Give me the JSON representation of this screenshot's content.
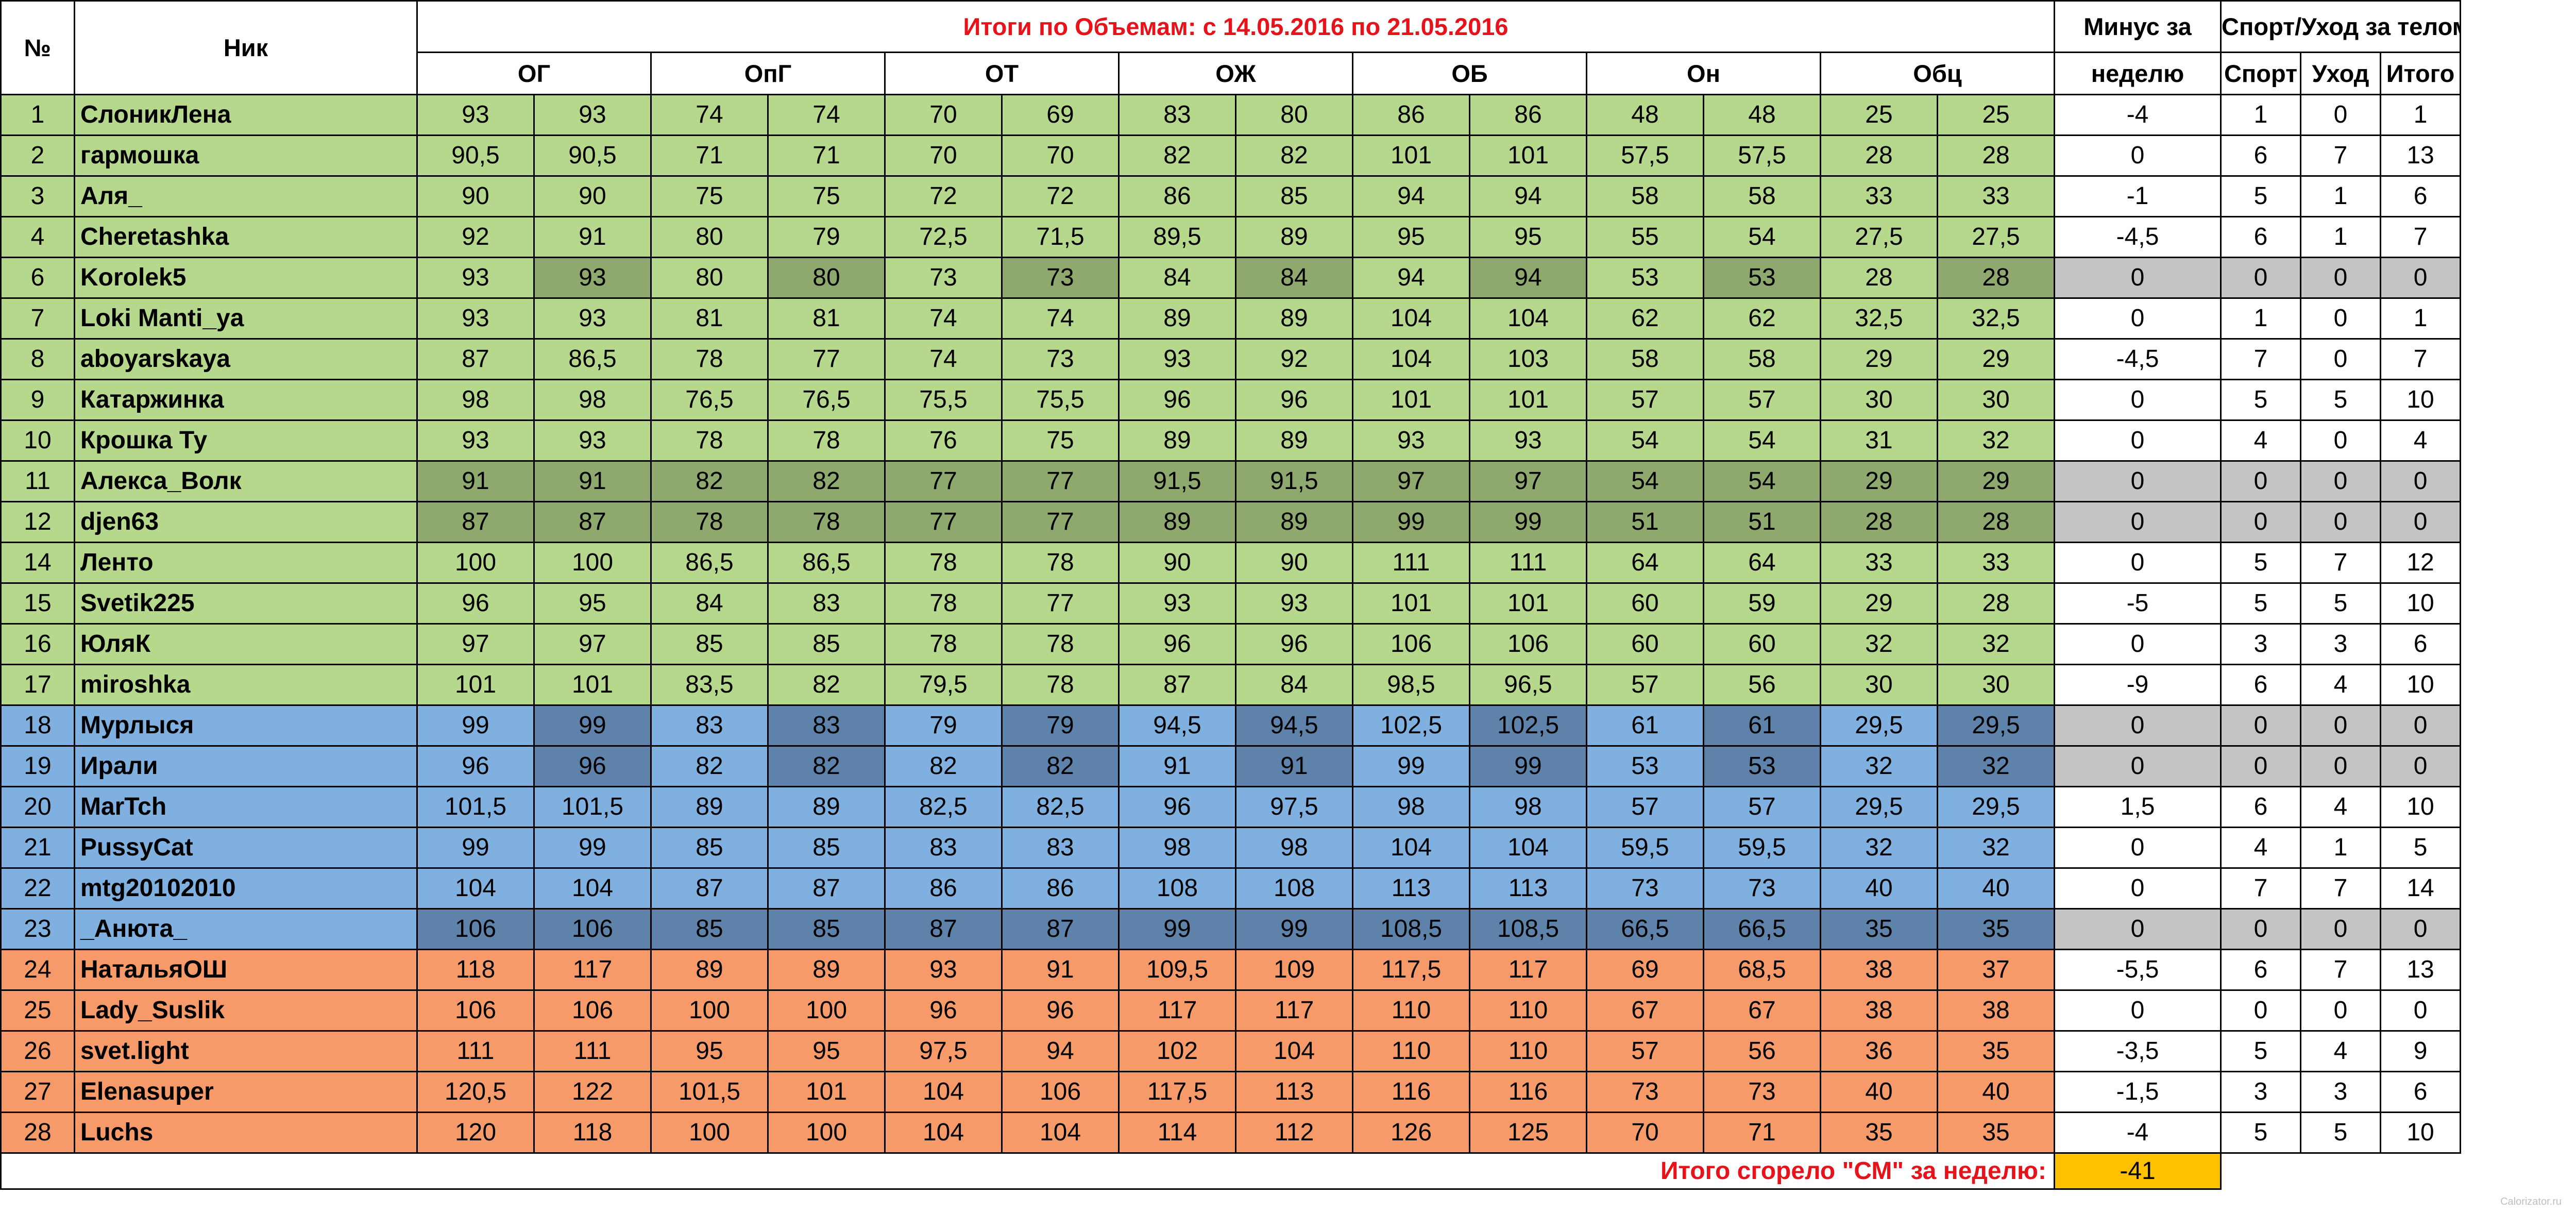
{
  "header": {
    "num_label": "№",
    "nick_label": "Ник",
    "title": "Итоги по Объемам: с  14.05.2016 по 21.05.2016",
    "minus_label_line1": "Минус за",
    "minus_label_line2": "неделю",
    "sport_group_label": "Спорт/Уход за телом",
    "measure_labels": [
      "ОГ",
      "ОпГ",
      "ОТ",
      "ОЖ",
      "ОБ",
      "Он",
      "Обц"
    ],
    "sport_labels": [
      "Спорт",
      "Уход",
      "Итого"
    ]
  },
  "rows": [
    {
      "n": "1",
      "nick": "СлоникЛена",
      "v": [
        "93",
        "93",
        "74",
        "74",
        "70",
        "69",
        "83",
        "80",
        "86",
        "86",
        "48",
        "48",
        "25",
        "25"
      ],
      "minus": "-4",
      "sport": [
        "1",
        "0",
        "1"
      ],
      "style": "g"
    },
    {
      "n": "2",
      "nick": "гармошка",
      "v": [
        "90,5",
        "90,5",
        "71",
        "71",
        "70",
        "70",
        "82",
        "82",
        "101",
        "101",
        "57,5",
        "57,5",
        "28",
        "28"
      ],
      "minus": "0",
      "sport": [
        "6",
        "7",
        "13"
      ],
      "style": "g"
    },
    {
      "n": "3",
      "nick": "Аля_",
      "v": [
        "90",
        "90",
        "75",
        "75",
        "72",
        "72",
        "86",
        "85",
        "94",
        "94",
        "58",
        "58",
        "33",
        "33"
      ],
      "minus": "-1",
      "sport": [
        "5",
        "1",
        "6"
      ],
      "style": "g"
    },
    {
      "n": "4",
      "nick": "Cheretashka",
      "v": [
        "92",
        "91",
        "80",
        "79",
        "72,5",
        "71,5",
        "89,5",
        "89",
        "95",
        "95",
        "55",
        "54",
        "27,5",
        "27,5"
      ],
      "minus": "-4,5",
      "sport": [
        "6",
        "1",
        "7"
      ],
      "style": "g"
    },
    {
      "n": "6",
      "nick": "Korolek5",
      "v": [
        "93",
        "93",
        "80",
        "80",
        "73",
        "73",
        "84",
        "84",
        "94",
        "94",
        "53",
        "53",
        "28",
        "28"
      ],
      "minus": "0",
      "sport": [
        "0",
        "0",
        "0"
      ],
      "style": "gd",
      "gray": true
    },
    {
      "n": "7",
      "nick": "Loki Manti_ya",
      "v": [
        "93",
        "93",
        "81",
        "81",
        "74",
        "74",
        "89",
        "89",
        "104",
        "104",
        "62",
        "62",
        "32,5",
        "32,5"
      ],
      "minus": "0",
      "sport": [
        "1",
        "0",
        "1"
      ],
      "style": "g"
    },
    {
      "n": "8",
      "nick": "aboyarskaya",
      "v": [
        "87",
        "86,5",
        "78",
        "77",
        "74",
        "73",
        "93",
        "92",
        "104",
        "103",
        "58",
        "58",
        "29",
        "29"
      ],
      "minus": "-4,5",
      "sport": [
        "7",
        "0",
        "7"
      ],
      "style": "g"
    },
    {
      "n": "9",
      "nick": "Катаржинка",
      "v": [
        "98",
        "98",
        "76,5",
        "76,5",
        "75,5",
        "75,5",
        "96",
        "96",
        "101",
        "101",
        "57",
        "57",
        "30",
        "30"
      ],
      "minus": "0",
      "sport": [
        "5",
        "5",
        "10"
      ],
      "style": "g"
    },
    {
      "n": "10",
      "nick": "Крошка Ту",
      "v": [
        "93",
        "93",
        "78",
        "78",
        "76",
        "75",
        "89",
        "89",
        "93",
        "93",
        "54",
        "54",
        "31",
        "32"
      ],
      "minus": "0",
      "sport": [
        "4",
        "0",
        "4"
      ],
      "style": "g"
    },
    {
      "n": "11",
      "nick": "Алекса_Волк",
      "v": [
        "91",
        "91",
        "82",
        "82",
        "77",
        "77",
        "91,5",
        "91,5",
        "97",
        "97",
        "54",
        "54",
        "29",
        "29"
      ],
      "minus": "0",
      "sport": [
        "0",
        "0",
        "0"
      ],
      "style": "gd",
      "gray": true,
      "allshade": true
    },
    {
      "n": "12",
      "nick": "djen63",
      "v": [
        "87",
        "87",
        "78",
        "78",
        "77",
        "77",
        "89",
        "89",
        "99",
        "99",
        "51",
        "51",
        "28",
        "28"
      ],
      "minus": "0",
      "sport": [
        "0",
        "0",
        "0"
      ],
      "style": "gd",
      "gray": true,
      "allshade": true
    },
    {
      "n": "14",
      "nick": "Ленто",
      "v": [
        "100",
        "100",
        "86,5",
        "86,5",
        "78",
        "78",
        "90",
        "90",
        "111",
        "111",
        "64",
        "64",
        "33",
        "33"
      ],
      "minus": "0",
      "sport": [
        "5",
        "7",
        "12"
      ],
      "style": "g"
    },
    {
      "n": "15",
      "nick": "Svetik225",
      "v": [
        "96",
        "95",
        "84",
        "83",
        "78",
        "77",
        "93",
        "93",
        "101",
        "101",
        "60",
        "59",
        "29",
        "28"
      ],
      "minus": "-5",
      "sport": [
        "5",
        "5",
        "10"
      ],
      "style": "g"
    },
    {
      "n": "16",
      "nick": "ЮляК",
      "v": [
        "97",
        "97",
        "85",
        "85",
        "78",
        "78",
        "96",
        "96",
        "106",
        "106",
        "60",
        "60",
        "32",
        "32"
      ],
      "minus": "0",
      "sport": [
        "3",
        "3",
        "6"
      ],
      "style": "g"
    },
    {
      "n": "17",
      "nick": "miroshka",
      "v": [
        "101",
        "101",
        "83,5",
        "82",
        "79,5",
        "78",
        "87",
        "84",
        "98,5",
        "96,5",
        "57",
        "56",
        "30",
        "30"
      ],
      "minus": "-9",
      "sport": [
        "6",
        "4",
        "10"
      ],
      "style": "g"
    },
    {
      "n": "18",
      "nick": "Мурлыся",
      "v": [
        "99",
        "99",
        "83",
        "83",
        "79",
        "79",
        "94,5",
        "94,5",
        "102,5",
        "102,5",
        "61",
        "61",
        "29,5",
        "29,5"
      ],
      "minus": "0",
      "sport": [
        "0",
        "0",
        "0"
      ],
      "style": "bd",
      "gray": true
    },
    {
      "n": "19",
      "nick": "Ирали",
      "v": [
        "96",
        "96",
        "82",
        "82",
        "82",
        "82",
        "91",
        "91",
        "99",
        "99",
        "53",
        "53",
        "32",
        "32"
      ],
      "minus": "0",
      "sport": [
        "0",
        "0",
        "0"
      ],
      "style": "bd",
      "gray": true
    },
    {
      "n": "20",
      "nick": "MarTch",
      "v": [
        "101,5",
        "101,5",
        "89",
        "89",
        "82,5",
        "82,5",
        "96",
        "97,5",
        "98",
        "98",
        "57",
        "57",
        "29,5",
        "29,5"
      ],
      "minus": "1,5",
      "sport": [
        "6",
        "4",
        "10"
      ],
      "style": "b"
    },
    {
      "n": "21",
      "nick": "PussyCat",
      "v": [
        "99",
        "99",
        "85",
        "85",
        "83",
        "83",
        "98",
        "98",
        "104",
        "104",
        "59,5",
        "59,5",
        "32",
        "32"
      ],
      "minus": "0",
      "sport": [
        "4",
        "1",
        "5"
      ],
      "style": "b"
    },
    {
      "n": "22",
      "nick": "mtg20102010",
      "v": [
        "104",
        "104",
        "87",
        "87",
        "86",
        "86",
        "108",
        "108",
        "113",
        "113",
        "73",
        "73",
        "40",
        "40"
      ],
      "minus": "0",
      "sport": [
        "7",
        "7",
        "14"
      ],
      "style": "b"
    },
    {
      "n": "23",
      "nick": "_Анюта_",
      "v": [
        "106",
        "106",
        "85",
        "85",
        "87",
        "87",
        "99",
        "99",
        "108,5",
        "108,5",
        "66,5",
        "66,5",
        "35",
        "35"
      ],
      "minus": "0",
      "sport": [
        "0",
        "0",
        "0"
      ],
      "style": "bd",
      "gray": true,
      "allshade": true
    },
    {
      "n": "24",
      "nick": "НатальяОШ",
      "v": [
        "118",
        "117",
        "89",
        "89",
        "93",
        "91",
        "109,5",
        "109",
        "117,5",
        "117",
        "69",
        "68,5",
        "38",
        "37"
      ],
      "minus": "-5,5",
      "sport": [
        "6",
        "7",
        "13"
      ],
      "style": "o"
    },
    {
      "n": "25",
      "nick": "Lady_Suslik",
      "v": [
        "106",
        "106",
        "100",
        "100",
        "96",
        "96",
        "117",
        "117",
        "110",
        "110",
        "67",
        "67",
        "38",
        "38"
      ],
      "minus": "0",
      "sport": [
        "0",
        "0",
        "0"
      ],
      "style": "o"
    },
    {
      "n": "26",
      "nick": "svet.light",
      "v": [
        "111",
        "111",
        "95",
        "95",
        "97,5",
        "94",
        "102",
        "104",
        "110",
        "110",
        "57",
        "56",
        "36",
        "35"
      ],
      "minus": "-3,5",
      "sport": [
        "5",
        "4",
        "9"
      ],
      "style": "o"
    },
    {
      "n": "27",
      "nick": "Elenasuper",
      "v": [
        "120,5",
        "122",
        "101,5",
        "101",
        "104",
        "106",
        "117,5",
        "113",
        "116",
        "116",
        "73",
        "73",
        "40",
        "40"
      ],
      "minus": "-1,5",
      "sport": [
        "3",
        "3",
        "6"
      ],
      "style": "o"
    },
    {
      "n": "28",
      "nick": "Luchs",
      "v": [
        "120",
        "118",
        "100",
        "100",
        "104",
        "104",
        "114",
        "112",
        "126",
        "125",
        "70",
        "71",
        "35",
        "35"
      ],
      "minus": "-4",
      "sport": [
        "5",
        "5",
        "10"
      ],
      "style": "o"
    }
  ],
  "footer": {
    "label": "Итого сгорело \"СМ\" за неделю:",
    "total": "-41"
  },
  "watermark": "Calorizator.ru",
  "colors": {
    "green": "#b6d88c",
    "green_dark": "#8fa86e",
    "blue": "#7fb0df",
    "blue_dark": "#5e82aa",
    "orange": "#f79a6a",
    "gray": "#c4c4c4",
    "gold": "#ffc000",
    "title_red": "#e8121b"
  }
}
